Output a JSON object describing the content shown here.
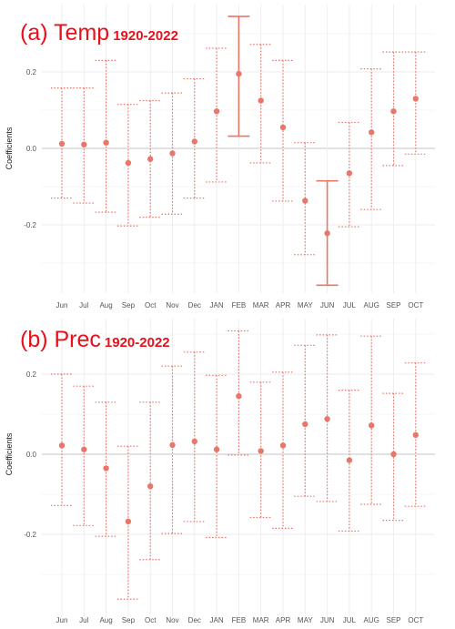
{
  "chart_data": [
    {
      "type": "scatter",
      "title": "(a) Temp",
      "subtitle": "1920-2022",
      "xlabel": "",
      "ylabel": "Coefficients",
      "categories": [
        "Jun",
        "Jul",
        "Aug",
        "Sep",
        "Oct",
        "Nov",
        "Dec",
        "JAN",
        "FEB",
        "MAR",
        "APR",
        "MAY",
        "JUN",
        "JUL",
        "AUG",
        "SEP",
        "OCT"
      ],
      "values": [
        0.012,
        0.01,
        0.015,
        -0.038,
        -0.028,
        -0.013,
        0.018,
        0.097,
        0.195,
        0.125,
        0.055,
        -0.137,
        -0.222,
        -0.065,
        0.042,
        0.097,
        0.13
      ],
      "lower": [
        -0.13,
        -0.143,
        -0.167,
        -0.203,
        -0.18,
        -0.172,
        -0.13,
        -0.088,
        0.032,
        -0.038,
        -0.138,
        -0.278,
        -0.358,
        -0.205,
        -0.16,
        -0.045,
        -0.015
      ],
      "upper": [
        0.158,
        0.158,
        0.23,
        0.115,
        0.125,
        0.145,
        0.182,
        0.262,
        0.345,
        0.272,
        0.23,
        0.015,
        -0.085,
        0.068,
        0.208,
        0.252,
        0.252
      ],
      "significant": [
        "FEB",
        "JUN"
      ],
      "yticks": [
        -0.2,
        0.0,
        0.2
      ],
      "ytick_labels": [
        "-0.2",
        "0.0",
        "0.2"
      ],
      "ylim": [
        -0.39,
        0.35
      ],
      "grid": true,
      "color": "#e8766b",
      "title_color": "#e8101a"
    },
    {
      "type": "scatter",
      "title": "(b) Prec",
      "subtitle": "1920-2022",
      "xlabel": "",
      "ylabel": "Coefficients",
      "categories": [
        "Jun",
        "Jul",
        "Aug",
        "Sep",
        "Oct",
        "Nov",
        "Dec",
        "JAN",
        "FEB",
        "MAR",
        "APR",
        "MAY",
        "JUN",
        "JUL",
        "AUG",
        "SEP",
        "OCT"
      ],
      "values": [
        0.022,
        0.012,
        -0.035,
        -0.168,
        -0.08,
        0.023,
        0.032,
        0.012,
        0.145,
        0.008,
        0.022,
        0.075,
        0.088,
        -0.015,
        0.072,
        0.0,
        0.048
      ],
      "lower": [
        -0.128,
        -0.178,
        -0.205,
        -0.362,
        -0.263,
        -0.198,
        -0.168,
        -0.208,
        -0.002,
        -0.158,
        -0.185,
        -0.105,
        -0.118,
        -0.192,
        -0.125,
        -0.165,
        -0.13
      ],
      "upper": [
        0.2,
        0.17,
        0.13,
        0.02,
        0.13,
        0.22,
        0.255,
        0.197,
        0.308,
        0.18,
        0.205,
        0.272,
        0.298,
        0.16,
        0.295,
        0.152,
        0.228
      ],
      "significant": [],
      "yticks": [
        -0.2,
        0.0,
        0.2
      ],
      "ytick_labels": [
        "-0.2",
        "0.0",
        "0.2"
      ],
      "ylim": [
        -0.39,
        0.33
      ],
      "grid": true,
      "color": "#e8766b",
      "title_color": "#e8101a"
    }
  ]
}
